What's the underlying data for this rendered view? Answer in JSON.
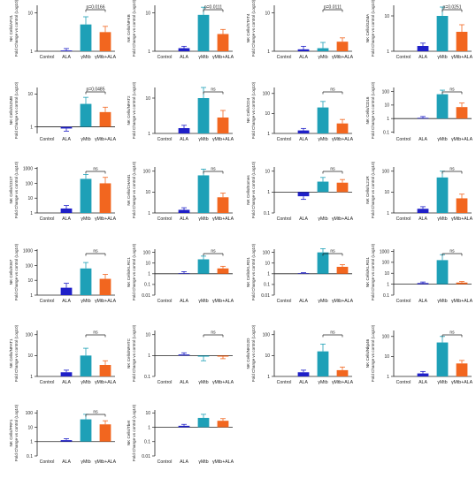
{
  "chart_data": [
    {
      "type": "bar",
      "ylabel": "NK Cells/APJ1\nFold Change vs control (Log10)",
      "yticks": [
        "10",
        "1"
      ],
      "ylog": [
        0,
        1.2
      ],
      "categories": [
        "Control",
        "ALA",
        "γMtb",
        "γMtb+ALA"
      ],
      "values": [
        0,
        0.02,
        0.7,
        0.5
      ],
      "errors": [
        0,
        0.05,
        0.2,
        0.15
      ],
      "comparison": {
        "between": [
          2,
          3
        ],
        "label": "p=0.0166"
      }
    },
    {
      "type": "bar",
      "ylabel": "NK Cells/NFKB\nFold Change vs control (Log10)",
      "yticks": [
        "10",
        "1"
      ],
      "ylog": [
        0,
        1.2
      ],
      "categories": [
        "Control",
        "ALA",
        "γMtb",
        "γMtb+ALA"
      ],
      "values": [
        0,
        0.08,
        0.95,
        0.45
      ],
      "errors": [
        0,
        0.05,
        0.2,
        0.12
      ],
      "comparison": {
        "between": [
          2,
          3
        ],
        "label": "p=0.0111"
      }
    },
    {
      "type": "bar",
      "ylabel": "NK Cells/STAT4\nFold Change vs control (Log10)",
      "yticks": [
        "10",
        "1"
      ],
      "ylog": [
        0,
        1.2
      ],
      "categories": [
        "Control",
        "ALA",
        "γMtb",
        "γMtb+ALA"
      ],
      "values": [
        0,
        0.05,
        0.08,
        0.25
      ],
      "errors": [
        0,
        0.08,
        0.15,
        0.1
      ],
      "comparison": {
        "between": [
          2,
          3
        ],
        "label": "p=0.0111"
      }
    },
    {
      "type": "bar",
      "ylabel": "NK Cells/GZMA\nFold Change vs control (Log10)",
      "yticks": [
        "10",
        "1"
      ],
      "ylog": [
        0,
        1.3
      ],
      "categories": [
        "Control",
        "ALA",
        "γMtb",
        "γMtb+ALA"
      ],
      "values": [
        0,
        0.15,
        1.0,
        0.55
      ],
      "errors": [
        0,
        0.08,
        0.25,
        0.2
      ],
      "comparison": {
        "between": [
          2,
          3
        ],
        "label": "p=0.0251"
      }
    },
    {
      "type": "bar",
      "ylabel": "NK Cells/GZMB\nFold Change vs control (Log10)",
      "yticks": [
        "10",
        "1"
      ],
      "ylog": [
        -0.2,
        1.2
      ],
      "categories": [
        "Control",
        "ALA",
        "γMtb",
        "γMtb+ALA"
      ],
      "values": [
        0,
        -0.05,
        0.7,
        0.45
      ],
      "errors": [
        0,
        0.08,
        0.2,
        0.15
      ],
      "comparison": {
        "between": [
          2,
          3
        ],
        "label": "p=0.0485"
      }
    },
    {
      "type": "bar",
      "ylabel": "NK Cells/NFAT2\nFold Change vs control (Log10)",
      "yticks": [
        "10",
        "1"
      ],
      "ylog": [
        0,
        1.3
      ],
      "categories": [
        "Control",
        "ALA",
        "γMtb",
        "γMtb+ALA"
      ],
      "values": [
        0,
        0.15,
        1.0,
        0.45
      ],
      "errors": [
        0,
        0.08,
        0.3,
        0.2
      ],
      "comparison": {
        "between": [
          2,
          3
        ],
        "label": "ns"
      }
    },
    {
      "type": "bar",
      "ylabel": "NK Cells/CD4\nFold Change vs control (Log10)",
      "yticks": [
        "100",
        "10",
        "1"
      ],
      "ylog": [
        0,
        2.3
      ],
      "categories": [
        "Control",
        "ALA",
        "γMtb",
        "γMtb+ALA"
      ],
      "values": [
        0,
        0.15,
        1.3,
        0.5
      ],
      "errors": [
        0,
        0.1,
        0.3,
        0.2
      ],
      "comparison": {
        "between": [
          2,
          3
        ],
        "label": "ns"
      }
    },
    {
      "type": "bar",
      "ylabel": "NK Cells/CD16\nFold Change vs control (Log10)",
      "yticks": [
        "100",
        "10",
        "1",
        "0.1"
      ],
      "ylog": [
        -1.1,
        2.3
      ],
      "categories": [
        "Control",
        "ALA",
        "γMtb",
        "γMtb+ALA"
      ],
      "values": [
        0,
        0.05,
        1.8,
        0.85
      ],
      "errors": [
        0,
        0.1,
        0.3,
        0.3
      ],
      "comparison": {
        "between": [
          2,
          3
        ],
        "label": "ns"
      }
    },
    {
      "type": "bar",
      "ylabel": "NK Cells/CD27\nFold Change vs control (Log10)",
      "yticks": [
        "1000",
        "100",
        "10",
        "1"
      ],
      "ylog": [
        0,
        3.1
      ],
      "categories": [
        "Control",
        "ALA",
        "γMtb",
        "γMtb+ALA"
      ],
      "values": [
        0,
        0.3,
        2.3,
        2.0
      ],
      "errors": [
        0,
        0.2,
        0.3,
        0.4
      ],
      "comparison": {
        "between": [
          2,
          3
        ],
        "label": "ns"
      }
    },
    {
      "type": "bar",
      "ylabel": "NK Cells/CHAM1\nFold Change vs control (Log10)",
      "yticks": [
        "100",
        "10",
        "1"
      ],
      "ylog": [
        0,
        2.2
      ],
      "categories": [
        "Control",
        "ALA",
        "γMtb",
        "γMtb+ALA"
      ],
      "values": [
        0,
        0.15,
        1.8,
        0.75
      ],
      "errors": [
        0,
        0.1,
        0.3,
        0.2
      ],
      "comparison": {
        "between": [
          2,
          3
        ],
        "label": "ns"
      }
    },
    {
      "type": "bar",
      "ylabel": "NK Cells/Eomes\nFold Change vs control (Log10)",
      "yticks": [
        "10",
        "1",
        "0.1"
      ],
      "ylog": [
        -1,
        1.2
      ],
      "categories": [
        "Control",
        "ALA",
        "γMtb",
        "γMtb+ALA"
      ],
      "values": [
        0,
        -0.2,
        0.5,
        0.45
      ],
      "errors": [
        0,
        0.15,
        0.2,
        0.15
      ],
      "comparison": {
        "between": [
          2,
          3
        ],
        "label": "ns"
      }
    },
    {
      "type": "bar",
      "ylabel": "NK Cells/IL21R\nFold Change vs control (Log10)",
      "yticks": [
        "100",
        "10",
        "1"
      ],
      "ylog": [
        0,
        2.2
      ],
      "categories": [
        "Control",
        "ALA",
        "γMtb",
        "γMtb+ALA"
      ],
      "values": [
        0,
        0.2,
        1.7,
        0.7
      ],
      "errors": [
        0,
        0.1,
        0.3,
        0.2
      ],
      "comparison": {
        "between": [
          2,
          3
        ],
        "label": "ns"
      }
    },
    {
      "type": "bar",
      "ylabel": "NK Cells/KI67\nFold Change vs control (Log10)",
      "yticks": [
        "1000",
        "100",
        "10",
        "1"
      ],
      "ylog": [
        0,
        3.1
      ],
      "categories": [
        "Control",
        "ALA",
        "γMtb",
        "γMtb+ALA"
      ],
      "values": [
        0,
        0.5,
        1.8,
        1.1
      ],
      "errors": [
        0,
        0.3,
        0.4,
        0.3
      ],
      "comparison": {
        "between": [
          2,
          3
        ],
        "label": "ns"
      }
    },
    {
      "type": "bar",
      "ylabel": "NK Cells/KLRC1\nFold Change vs control (Log10)",
      "yticks": [
        "100",
        "10",
        "1",
        "0.1",
        "0.01"
      ],
      "ylog": [
        -2,
        2.3
      ],
      "categories": [
        "Control",
        "ALA",
        "γMtb",
        "γMtb+ALA"
      ],
      "values": [
        0,
        0.05,
        1.35,
        0.5
      ],
      "errors": [
        0,
        0.15,
        0.3,
        0.2
      ],
      "comparison": {
        "between": [
          2,
          3
        ],
        "label": "ns"
      }
    },
    {
      "type": "bar",
      "ylabel": "NK Cells/KLRD1\nFold Change vs control (Log10)",
      "yticks": [
        "100",
        "10",
        "1",
        "0.1",
        "0.01"
      ],
      "ylog": [
        -2,
        2.3
      ],
      "categories": [
        "Control",
        "ALA",
        "γMtb",
        "γMtb+ALA"
      ],
      "values": [
        0,
        0.05,
        2.0,
        0.65
      ],
      "errors": [
        0,
        0.05,
        0.35,
        0.2
      ],
      "comparison": {
        "between": [
          2,
          3
        ],
        "label": "ns"
      }
    },
    {
      "type": "bar",
      "ylabel": "NK Cells/KLRG1\nFold Change vs control (Log10)",
      "yticks": [
        "1000",
        "100",
        "10",
        "1",
        "0.1"
      ],
      "ylog": [
        -1,
        3.2
      ],
      "categories": [
        "Control",
        "ALA",
        "γMtb",
        "γMtb+ALA"
      ],
      "values": [
        0,
        0.1,
        2.2,
        0.15
      ],
      "errors": [
        0,
        0.1,
        0.5,
        0.1
      ],
      "comparison": {
        "between": [
          2,
          3
        ],
        "label": "ns"
      }
    },
    {
      "type": "bar",
      "ylabel": "NK Cells/NFAT1\nFold Change vs control (Log10)",
      "yticks": [
        "100",
        "10",
        "1"
      ],
      "ylog": [
        0,
        2.2
      ],
      "categories": [
        "Control",
        "ALA",
        "γMtb",
        "γMtb+ALA"
      ],
      "values": [
        0,
        0.2,
        1.0,
        0.55
      ],
      "errors": [
        0,
        0.1,
        0.35,
        0.2
      ],
      "comparison": {
        "between": [
          2,
          3
        ],
        "label": "ns"
      }
    },
    {
      "type": "bar",
      "ylabel": "NK Cells/NFATC\nFold Change vs control (Log10)",
      "yticks": [
        "10",
        "1",
        "0.1"
      ],
      "ylog": [
        -1,
        1.2
      ],
      "categories": [
        "Control",
        "ALA",
        "γMtb",
        "γMtb+ALA"
      ],
      "values": [
        0,
        0.05,
        -0.05,
        -0.05
      ],
      "errors": [
        0,
        0.08,
        0.2,
        0.1
      ],
      "comparison": {
        "between": [
          2,
          3
        ],
        "label": "ns"
      }
    },
    {
      "type": "bar",
      "ylabel": "NK Cells/NKG2D\nFold Change vs control (Log10)",
      "yticks": [
        "100",
        "10",
        "1"
      ],
      "ylog": [
        0,
        2.2
      ],
      "categories": [
        "Control",
        "ALA",
        "γMtb",
        "γMtb+ALA"
      ],
      "values": [
        0,
        0.2,
        1.2,
        0.3
      ],
      "errors": [
        0,
        0.1,
        0.35,
        0.15
      ],
      "comparison": {
        "between": [
          2,
          3
        ],
        "label": "ns"
      }
    },
    {
      "type": "bar",
      "ylabel": "NK Cells/Nkp46\nFold Change vs control (Log10)",
      "yticks": [
        "100",
        "10",
        "1"
      ],
      "ylog": [
        0,
        2.3
      ],
      "categories": [
        "Control",
        "ALA",
        "γMtb",
        "γMtb+ALA"
      ],
      "values": [
        0,
        0.15,
        1.7,
        0.65
      ],
      "errors": [
        0,
        0.1,
        0.3,
        0.15
      ],
      "comparison": {
        "between": [
          2,
          3
        ],
        "label": "ns"
      }
    },
    {
      "type": "bar",
      "ylabel": "NK Cells/PRF1\nFold Change vs control (Log10)",
      "yticks": [
        "100",
        "10",
        "1",
        "0.1"
      ],
      "ylog": [
        -1,
        2.2
      ],
      "categories": [
        "Control",
        "ALA",
        "γMtb",
        "γMtb+ALA"
      ],
      "values": [
        0,
        0.1,
        1.55,
        1.2
      ],
      "errors": [
        0,
        0.1,
        0.35,
        0.25
      ],
      "comparison": {
        "between": [
          2,
          3
        ],
        "label": "ns"
      }
    },
    {
      "type": "bar",
      "ylabel": "NK Cells/Tbet\nFold Change vs control (Log10)",
      "yticks": [
        "10",
        "1",
        "0.1",
        "0.01"
      ],
      "ylog": [
        -2,
        1.2
      ],
      "categories": [
        "Control",
        "ALA",
        "γMtb",
        "γMtb+ALA"
      ],
      "values": [
        0,
        0.1,
        0.65,
        0.45
      ],
      "errors": [
        0,
        0.1,
        0.25,
        0.15
      ],
      "comparison": null
    }
  ],
  "colors": {
    "Control": "#ffffff",
    "ALA": "#1f20c8",
    "γMtb": "#1ea0b7",
    "γMtb+ALA": "#f2661f"
  }
}
